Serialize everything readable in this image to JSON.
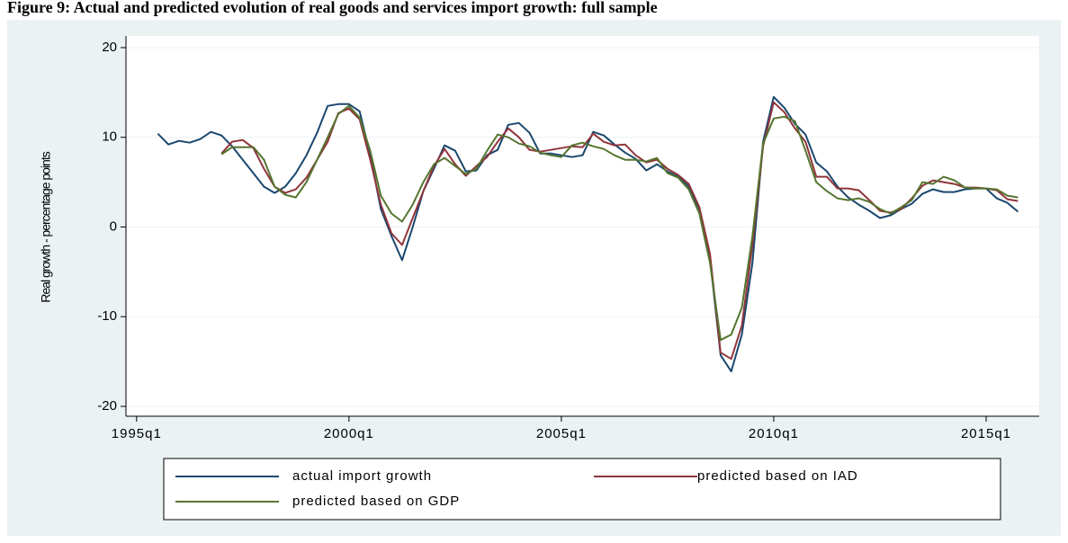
{
  "chart_data": {
    "type": "line",
    "title": "Figure 9: Actual and predicted evolution of real goods and services import growth: full sample",
    "y_label": "Real growth - percentage points",
    "x": [
      "1995q3",
      "1995q4",
      "1996q1",
      "1996q2",
      "1996q3",
      "1996q4",
      "1997q1",
      "1997q2",
      "1997q3",
      "1997q4",
      "1998q1",
      "1998q2",
      "1998q3",
      "1998q4",
      "1999q1",
      "1999q2",
      "1999q3",
      "1999q4",
      "2000q1",
      "2000q2",
      "2000q3",
      "2000q4",
      "2001q1",
      "2001q2",
      "2001q3",
      "2001q4",
      "2002q1",
      "2002q2",
      "2002q3",
      "2002q4",
      "2003q1",
      "2003q2",
      "2003q3",
      "2003q4",
      "2004q1",
      "2004q2",
      "2004q3",
      "2004q4",
      "2005q1",
      "2005q2",
      "2005q3",
      "2005q4",
      "2006q1",
      "2006q2",
      "2006q3",
      "2006q4",
      "2007q1",
      "2007q2",
      "2007q3",
      "2007q4",
      "2008q1",
      "2008q2",
      "2008q3",
      "2008q4",
      "2009q1",
      "2009q2",
      "2009q3",
      "2009q4",
      "2010q1",
      "2010q2",
      "2010q3",
      "2010q4",
      "2011q1",
      "2011q2",
      "2011q3",
      "2011q4",
      "2012q1",
      "2012q2",
      "2012q3",
      "2012q4",
      "2013q1",
      "2013q2",
      "2013q3",
      "2013q4",
      "2014q1",
      "2014q2",
      "2014q3",
      "2014q4",
      "2015q1",
      "2015q2",
      "2015q3",
      "2015q4"
    ],
    "series": [
      {
        "name": "actual import growth",
        "color": "#1a476f",
        "values": [
          10.4,
          9.2,
          9.6,
          9.4,
          9.8,
          10.6,
          10.2,
          9.0,
          7.5,
          6.0,
          4.5,
          3.8,
          4.5,
          6.0,
          8.0,
          10.5,
          13.5,
          13.7,
          13.7,
          12.9,
          8.0,
          2.0,
          -1.0,
          -3.7,
          0.0,
          4.0,
          6.5,
          9.1,
          8.5,
          6.2,
          6.3,
          8.0,
          8.6,
          11.4,
          11.6,
          10.5,
          8.2,
          8.2,
          8.0,
          7.8,
          8.0,
          10.6,
          10.2,
          9.2,
          8.3,
          7.6,
          6.3,
          7.0,
          6.2,
          5.6,
          4.5,
          2.0,
          -3.5,
          -14.3,
          -16.1,
          -12.0,
          -4.0,
          9.5,
          14.5,
          13.3,
          11.5,
          10.3,
          7.2,
          6.2,
          4.5,
          3.3,
          2.5,
          1.8,
          1.0,
          1.3,
          2.0,
          2.6,
          3.7,
          4.2,
          3.9,
          3.9,
          4.2,
          4.3,
          4.3,
          3.2,
          2.7,
          1.7
        ]
      },
      {
        "name": "predicted based on IAD",
        "color": "#90353b",
        "values": [
          null,
          null,
          null,
          null,
          null,
          null,
          8.2,
          9.5,
          9.7,
          8.8,
          6.5,
          4.5,
          3.8,
          4.2,
          5.5,
          7.5,
          9.5,
          12.7,
          13.2,
          12.0,
          7.5,
          2.5,
          -0.7,
          -2.0,
          1.0,
          4.0,
          6.8,
          8.7,
          7.0,
          5.7,
          6.8,
          7.8,
          9.5,
          11.0,
          10.0,
          8.6,
          8.4,
          8.6,
          8.8,
          9.0,
          8.9,
          10.4,
          9.5,
          9.1,
          9.2,
          8.0,
          7.2,
          7.5,
          6.5,
          5.8,
          4.8,
          2.2,
          -3.0,
          -14.0,
          -14.7,
          -11.0,
          -2.0,
          9.0,
          13.9,
          12.8,
          11.0,
          9.5,
          5.6,
          5.6,
          4.3,
          4.3,
          4.1,
          3.0,
          1.8,
          1.6,
          2.0,
          3.2,
          4.6,
          5.2,
          5.0,
          4.8,
          4.4,
          4.4,
          4.3,
          4.1,
          3.1,
          2.9
        ]
      },
      {
        "name": "predicted based on GDP",
        "color": "#55752f",
        "values": [
          null,
          null,
          null,
          null,
          null,
          null,
          8.1,
          8.9,
          8.9,
          8.9,
          7.5,
          4.5,
          3.6,
          3.3,
          5.0,
          7.5,
          10.0,
          12.6,
          13.5,
          12.2,
          8.5,
          3.5,
          1.5,
          0.6,
          2.5,
          5.0,
          7.0,
          7.7,
          6.8,
          5.9,
          6.5,
          8.5,
          10.3,
          10.0,
          9.3,
          9.0,
          8.3,
          8.0,
          7.8,
          9.1,
          9.4,
          9.0,
          8.7,
          8.0,
          7.5,
          7.5,
          7.3,
          7.7,
          6.0,
          5.5,
          4.2,
          1.5,
          -4.0,
          -12.6,
          -12.0,
          -9.0,
          -1.0,
          9.3,
          12.1,
          12.3,
          11.8,
          8.5,
          5.0,
          4.0,
          3.2,
          3.0,
          3.2,
          2.8,
          2.0,
          1.5,
          2.2,
          3.0,
          5.0,
          4.8,
          5.6,
          5.2,
          4.4,
          4.3,
          4.3,
          4.2,
          3.5,
          3.3
        ]
      }
    ],
    "xlim": [
      "1994q4",
      "2016q2"
    ],
    "xticks": [
      "1995q1",
      "2000q1",
      "2005q1",
      "2010q1",
      "2015q1"
    ],
    "ylim": [
      -21.1,
      21.3
    ],
    "yticks": [
      -20,
      -10,
      0,
      10,
      20
    ],
    "grid": true,
    "legend": "bottom"
  }
}
